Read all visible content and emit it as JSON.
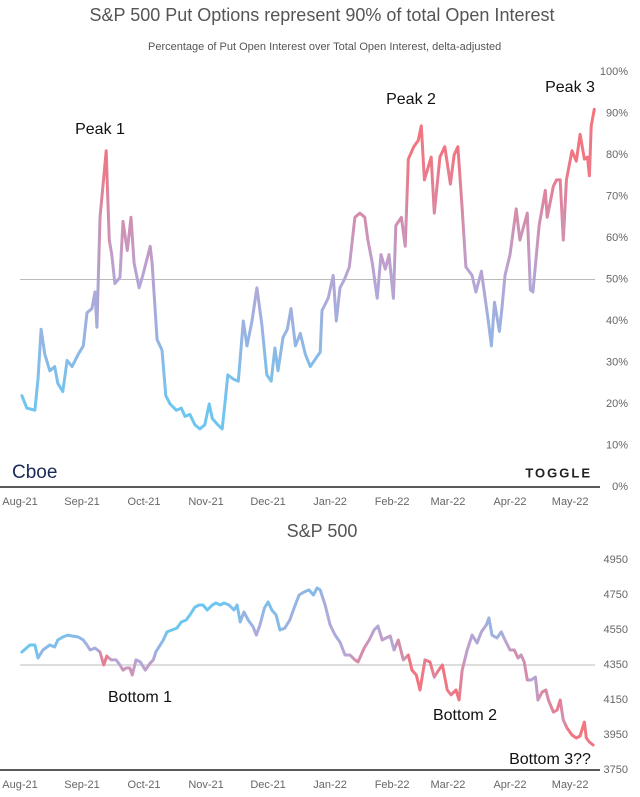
{
  "chart_data": [
    {
      "type": "line",
      "title": "S&P 500 Put Options represent 90% of total Open Interest",
      "annotations": [
        "Peak 1",
        "Peak 2",
        "Peak 3"
      ],
      "source_left": "Cboe",
      "source_right": "TOGGLE",
      "colors": [
        "#6ec6f0",
        "#b6a6d8",
        "#f2747f"
      ],
      "xlim": [
        0,
        9.4
      ],
      "xticks": [
        {
          "value": 0,
          "label": "Aug-21"
        },
        {
          "value": 1,
          "label": "Sep-21"
        },
        {
          "value": 2,
          "label": "Oct-21"
        },
        {
          "value": 3,
          "label": "Nov-21"
        },
        {
          "value": 4,
          "label": "Dec-21"
        },
        {
          "value": 5,
          "label": "Jan-22"
        },
        {
          "value": 6,
          "label": "Feb-22"
        },
        {
          "value": 6.9,
          "label": "Mar-22"
        },
        {
          "value": 7.9,
          "label": "Apr-22"
        },
        {
          "value": 8.87,
          "label": "May-22"
        }
      ],
      "ylim": [
        0,
        100
      ],
      "yticks": [
        {
          "value": 0,
          "label": "0%"
        },
        {
          "value": 10,
          "label": "10%"
        },
        {
          "value": 20,
          "label": "20%"
        },
        {
          "value": 30,
          "label": "30%"
        },
        {
          "value": 40,
          "label": "40%"
        },
        {
          "value": 50,
          "label": "50%"
        },
        {
          "value": 60,
          "label": "60%"
        },
        {
          "value": 70,
          "label": "70%"
        },
        {
          "value": 80,
          "label": "80%"
        },
        {
          "value": 90,
          "label": "90%"
        },
        {
          "value": 100,
          "label": "100%"
        }
      ],
      "reference_line": 50,
      "series": [
        {
          "name": "Percentage of Put Open Interest over Total Open Interest, delta-adjusted",
          "x": [
            0.03,
            0.11,
            0.24,
            0.29,
            0.34,
            0.4,
            0.48,
            0.56,
            0.61,
            0.69,
            0.76,
            0.84,
            0.94,
            1.02,
            1.08,
            1.16,
            1.21,
            1.24,
            1.29,
            1.39,
            1.44,
            1.48,
            1.53,
            1.61,
            1.66,
            1.73,
            1.79,
            1.84,
            1.92,
            1.98,
            2.1,
            2.13,
            2.21,
            2.29,
            2.35,
            2.42,
            2.52,
            2.6,
            2.66,
            2.74,
            2.82,
            2.9,
            2.98,
            3.05,
            3.1,
            3.19,
            3.26,
            3.31,
            3.35,
            3.44,
            3.52,
            3.6,
            3.66,
            3.74,
            3.82,
            3.9,
            3.98,
            4.05,
            4.11,
            4.16,
            4.24,
            4.31,
            4.37,
            4.44,
            4.52,
            4.6,
            4.68,
            4.77,
            4.84,
            4.87,
            4.97,
            5.05,
            5.1,
            5.16,
            5.23,
            5.31,
            5.4,
            5.48,
            5.56,
            5.61,
            5.68,
            5.76,
            5.82,
            5.89,
            5.95,
            6.02,
            6.06,
            6.15,
            6.21,
            6.26,
            6.35,
            6.42,
            6.47,
            6.52,
            6.63,
            6.68,
            6.77,
            6.85,
            6.94,
            7.0,
            7.06,
            7.13,
            7.19,
            7.29,
            7.35,
            7.44,
            7.55,
            7.6,
            7.65,
            7.73,
            7.77,
            7.82,
            7.9,
            8.0,
            8.06,
            8.18,
            8.23,
            8.27,
            8.37,
            8.47,
            8.5,
            8.6,
            8.65,
            8.71,
            8.76,
            8.81,
            8.9,
            8.97,
            9.03,
            9.1,
            9.15,
            9.18,
            9.21,
            9.26
          ],
          "values": [
            22,
            19,
            18.5,
            26,
            38,
            32,
            28,
            29,
            25,
            23,
            30.5,
            29,
            32,
            34,
            42,
            43,
            47,
            38.5,
            65,
            81,
            59.5,
            56,
            49,
            50.5,
            64,
            57,
            65,
            54,
            48,
            51,
            58,
            54,
            35.5,
            33,
            22,
            20,
            18.5,
            19,
            17,
            17.5,
            15,
            14,
            15,
            20,
            16.5,
            15,
            14,
            21,
            27,
            26,
            25.5,
            40,
            34,
            40,
            48,
            39,
            27,
            25.5,
            33.5,
            28,
            36,
            38,
            43,
            34,
            37,
            32,
            29,
            31,
            32.5,
            42.5,
            45.5,
            51,
            40,
            48,
            50,
            53,
            65,
            66,
            65,
            59.5,
            54,
            45.5,
            56,
            52.5,
            56,
            45.5,
            63,
            65,
            58,
            79,
            82,
            83.5,
            87,
            74,
            79.5,
            66,
            79.5,
            82,
            73,
            80,
            82,
            67,
            53,
            51,
            47,
            52,
            40,
            34,
            44.5,
            37.5,
            43,
            51,
            56,
            67,
            59.5,
            66,
            47.5,
            47,
            63,
            71.5,
            65,
            72.5,
            74,
            74,
            59.5,
            74,
            81,
            78.5,
            85,
            79,
            79.5,
            75,
            87,
            91
          ]
        }
      ]
    },
    {
      "type": "line",
      "title": "S&P 500",
      "annotations": [
        "Bottom 1",
        "Bottom 2",
        "Bottom 3??"
      ],
      "colors": [
        "#6ec6f0",
        "#b6a6d8",
        "#f2747f"
      ],
      "xlim": [
        0,
        9.4
      ],
      "xticks": [
        {
          "value": 0,
          "label": "Aug-21"
        },
        {
          "value": 1,
          "label": "Sep-21"
        },
        {
          "value": 2,
          "label": "Oct-21"
        },
        {
          "value": 3,
          "label": "Nov-21"
        },
        {
          "value": 4,
          "label": "Dec-21"
        },
        {
          "value": 5,
          "label": "Jan-22"
        },
        {
          "value": 6,
          "label": "Feb-22"
        },
        {
          "value": 6.9,
          "label": "Mar-22"
        },
        {
          "value": 7.9,
          "label": "Apr-22"
        },
        {
          "value": 8.87,
          "label": "May-22"
        }
      ],
      "ylim": [
        3750,
        4950
      ],
      "yticks": [
        3750,
        3950,
        4150,
        4350,
        4550,
        4750,
        4950
      ],
      "reference_line": 4350,
      "series": [
        {
          "name": "S&P 500",
          "x": [
            0.03,
            0.16,
            0.24,
            0.29,
            0.37,
            0.48,
            0.56,
            0.61,
            0.69,
            0.77,
            0.84,
            0.94,
            1.02,
            1.08,
            1.13,
            1.21,
            1.29,
            1.35,
            1.4,
            1.47,
            1.55,
            1.61,
            1.66,
            1.71,
            1.77,
            1.81,
            1.87,
            1.94,
            2.02,
            2.1,
            2.15,
            2.19,
            2.26,
            2.31,
            2.37,
            2.45,
            2.53,
            2.6,
            2.68,
            2.74,
            2.82,
            2.89,
            2.95,
            3.02,
            3.1,
            3.16,
            3.23,
            3.29,
            3.37,
            3.45,
            3.5,
            3.55,
            3.61,
            3.68,
            3.76,
            3.81,
            3.87,
            3.94,
            4.0,
            4.06,
            4.13,
            4.19,
            4.27,
            4.35,
            4.42,
            4.5,
            4.58,
            4.66,
            4.73,
            4.79,
            4.84,
            4.92,
            5.0,
            5.08,
            5.16,
            5.24,
            5.32,
            5.4,
            5.45,
            5.55,
            5.63,
            5.71,
            5.77,
            5.84,
            5.9,
            5.97,
            6.03,
            6.1,
            6.18,
            6.26,
            6.32,
            6.39,
            6.45,
            6.53,
            6.61,
            6.68,
            6.74,
            6.81,
            6.89,
            6.95,
            7.03,
            7.08,
            7.13,
            7.21,
            7.29,
            7.37,
            7.44,
            7.52,
            7.56,
            7.61,
            7.69,
            7.76,
            7.82,
            7.9,
            7.97,
            8.03,
            8.08,
            8.13,
            8.18,
            8.24,
            8.31,
            8.35,
            8.42,
            8.48,
            8.52,
            8.6,
            8.66,
            8.71,
            8.76,
            8.82,
            8.9,
            8.97,
            9.03,
            9.1,
            9.13,
            9.18,
            9.24
          ],
          "values": [
            4424,
            4464,
            4464,
            4390,
            4436,
            4464,
            4453,
            4493,
            4510,
            4521,
            4516,
            4510,
            4493,
            4464,
            4436,
            4447,
            4424,
            4350,
            4401,
            4379,
            4379,
            4350,
            4321,
            4333,
            4333,
            4293,
            4379,
            4367,
            4321,
            4361,
            4379,
            4424,
            4464,
            4493,
            4539,
            4550,
            4561,
            4596,
            4607,
            4636,
            4681,
            4693,
            4693,
            4664,
            4693,
            4704,
            4693,
            4704,
            4693,
            4664,
            4693,
            4596,
            4653,
            4607,
            4567,
            4521,
            4579,
            4676,
            4710,
            4664,
            4636,
            4550,
            4561,
            4607,
            4676,
            4750,
            4767,
            4779,
            4750,
            4790,
            4779,
            4693,
            4579,
            4521,
            4481,
            4407,
            4407,
            4379,
            4367,
            4447,
            4493,
            4550,
            4573,
            4493,
            4504,
            4516,
            4436,
            4493,
            4379,
            4407,
            4321,
            4293,
            4207,
            4379,
            4367,
            4281,
            4316,
            4350,
            4207,
            4179,
            4207,
            4150,
            4321,
            4436,
            4521,
            4476,
            4539,
            4579,
            4619,
            4521,
            4504,
            4539,
            4493,
            4436,
            4436,
            4390,
            4407,
            4367,
            4264,
            4264,
            4281,
            4150,
            4196,
            4207,
            4150,
            4081,
            4093,
            4150,
            4036,
            3990,
            3950,
            3933,
            3944,
            4024,
            3933,
            3910,
            3893
          ]
        }
      ]
    }
  ]
}
